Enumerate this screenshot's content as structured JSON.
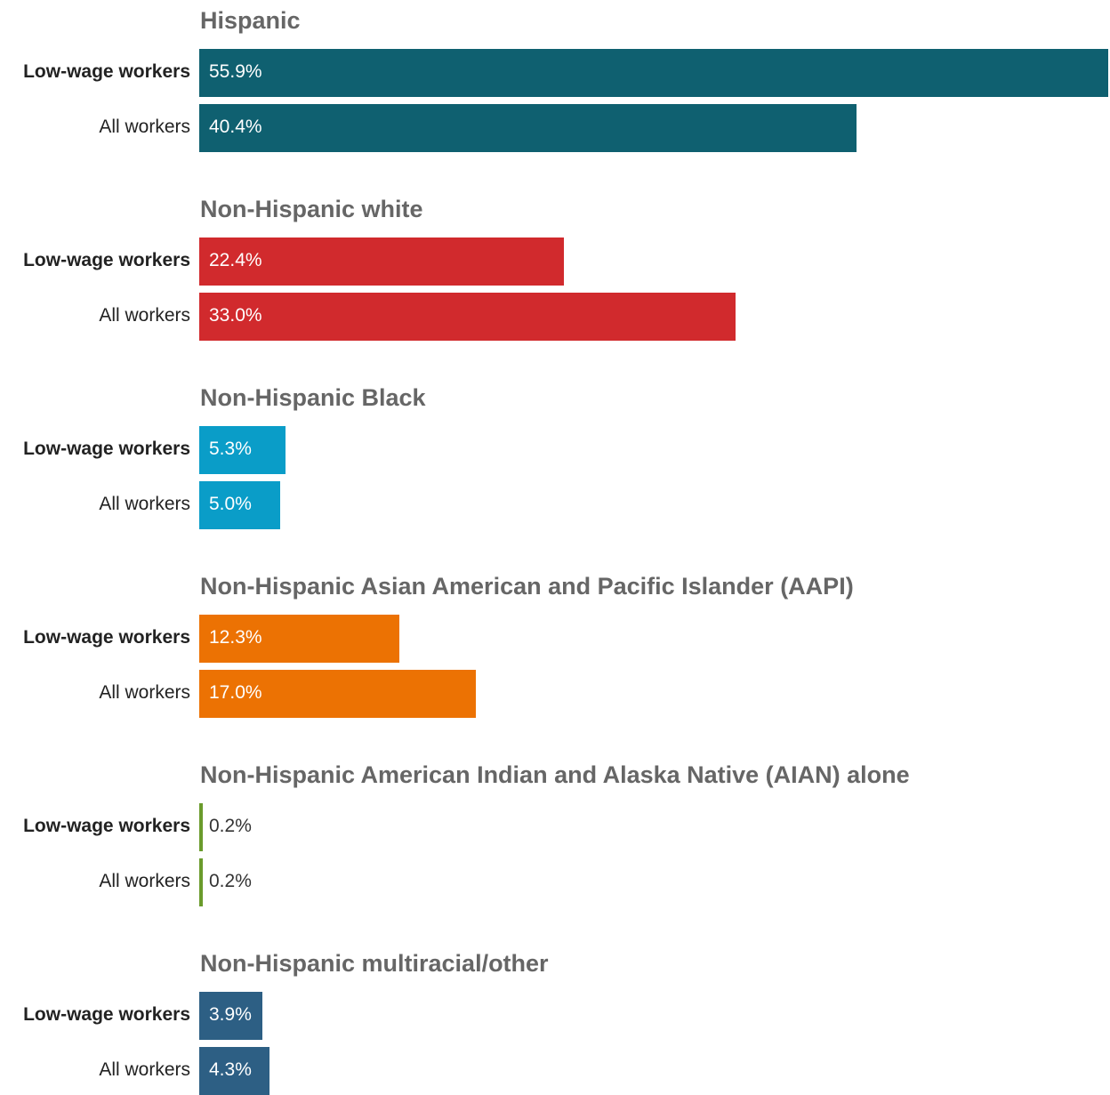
{
  "chart_data": {
    "type": "bar",
    "orientation": "horizontal",
    "unit": "%",
    "xlim": [
      0,
      56
    ],
    "grid": false,
    "legend": "none",
    "groups": [
      {
        "title": "Hispanic",
        "color": "#0f6070",
        "bars": [
          {
            "label": "Low-wage workers",
            "value": 55.9,
            "value_label": "55.9%",
            "emphasis": true
          },
          {
            "label": "All workers",
            "value": 40.4,
            "value_label": "40.4%",
            "emphasis": false
          }
        ]
      },
      {
        "title": "Non-Hispanic white",
        "color": "#d12a2d",
        "bars": [
          {
            "label": "Low-wage workers",
            "value": 22.4,
            "value_label": "22.4%",
            "emphasis": true
          },
          {
            "label": "All workers",
            "value": 33.0,
            "value_label": "33.0%",
            "emphasis": false
          }
        ]
      },
      {
        "title": "Non-Hispanic Black",
        "color": "#0a9dc8",
        "bars": [
          {
            "label": "Low-wage workers",
            "value": 5.3,
            "value_label": "5.3%",
            "emphasis": true
          },
          {
            "label": "All workers",
            "value": 5.0,
            "value_label": "5.0%",
            "emphasis": false
          }
        ]
      },
      {
        "title": "Non-Hispanic Asian American and Pacific Islander (AAPI)",
        "color": "#ec7203",
        "bars": [
          {
            "label": "Low-wage workers",
            "value": 12.3,
            "value_label": "12.3%",
            "emphasis": true
          },
          {
            "label": "All workers",
            "value": 17.0,
            "value_label": "17.0%",
            "emphasis": false
          }
        ]
      },
      {
        "title": "Non-Hispanic American Indian and Alaska Native (AIAN) alone",
        "color": "#6a9b2c",
        "bars": [
          {
            "label": "Low-wage workers",
            "value": 0.2,
            "value_label": "0.2%",
            "emphasis": true
          },
          {
            "label": "All workers",
            "value": 0.2,
            "value_label": "0.2%",
            "emphasis": false
          }
        ]
      },
      {
        "title": "Non-Hispanic multiracial/other",
        "color": "#2d5f84",
        "bars": [
          {
            "label": "Low-wage workers",
            "value": 3.9,
            "value_label": "3.9%",
            "emphasis": true
          },
          {
            "label": "All workers",
            "value": 4.3,
            "value_label": "4.3%",
            "emphasis": false
          }
        ]
      }
    ]
  }
}
